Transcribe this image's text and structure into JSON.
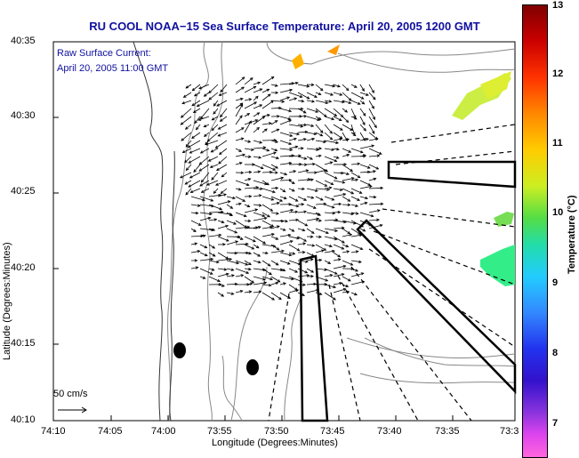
{
  "map": {
    "title": "RU COOL  NOAA−15  Sea Surface Temperature:  April 20, 2005 1200 GMT",
    "annotation_line1": "Raw Surface Current:",
    "annotation_line2": "April 20, 2005 11:00 GMT",
    "scale_label": "50 cm/s",
    "xlabel": "Longitude (Degrees:Minutes)",
    "ylabel": "Latitude (Degrees:Minutes)",
    "xticks": [
      "74:10",
      "74:05",
      "74:00",
      "73:55",
      "73:50",
      "73:45",
      "73:40",
      "73:35",
      "73:3"
    ],
    "yticks": [
      "40:35",
      "40:30",
      "40:25",
      "40:20",
      "40:15",
      "40:10"
    ]
  },
  "colorbar": {
    "label": "Temperature (°C)",
    "ticks": [
      "13",
      "12",
      "11",
      "10",
      "9",
      "8",
      "7"
    ],
    "range": [
      6.5,
      13
    ]
  },
  "colors": {
    "title": "#1010a0",
    "land_contour": "#888888",
    "vector": "#000000"
  }
}
